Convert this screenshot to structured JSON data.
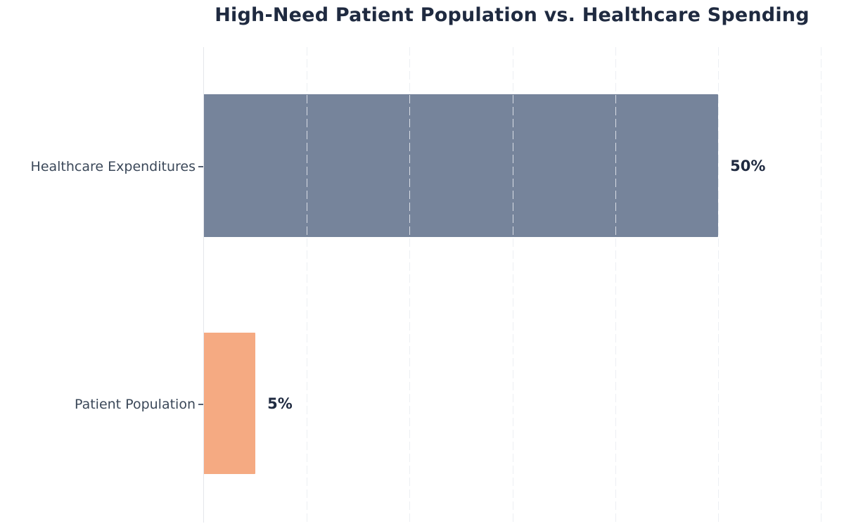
{
  "title": "High-Need Patient Population vs. Healthcare Spending",
  "chart_data": {
    "type": "bar",
    "orientation": "horizontal",
    "title": "High-Need Patient Population vs. Healthcare Spending",
    "categories": [
      "Healthcare Expenditures",
      "Patient Population"
    ],
    "values": [
      50,
      5
    ],
    "value_labels": [
      "50%",
      "5%"
    ],
    "xlabel": "",
    "ylabel": "",
    "xlim": [
      0,
      62.3
    ],
    "grid_interval_pct": 10,
    "grid": "vertical-dashed",
    "legend_position": "none",
    "bar_colors": [
      "#76849b",
      "#f5aa82"
    ],
    "title_color": "#1f2a40",
    "category_label_color": "#3b4859",
    "value_label_color": "#1f2a40",
    "gridline_color": "#e9ecf1",
    "axis_line_color": "#e4e6eb",
    "background_color": "#ffffff"
  }
}
